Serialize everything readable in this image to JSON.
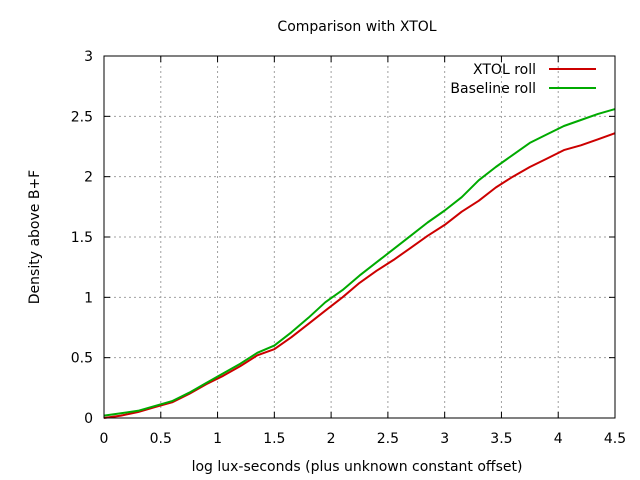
{
  "chart_data": {
    "type": "line",
    "title": "Comparison with XTOL",
    "xlabel": "log lux-seconds (plus unknown constant offset)",
    "ylabel": "Density above B+F",
    "xlim": [
      0,
      4.5
    ],
    "ylim": [
      0,
      3
    ],
    "x_ticks": [
      "0",
      "0.5",
      "1",
      "1.5",
      "2",
      "2.5",
      "3",
      "3.5",
      "4",
      "4.5"
    ],
    "y_ticks": [
      "0",
      "0.5",
      "1",
      "1.5",
      "2",
      "2.5",
      "3"
    ],
    "grid": true,
    "legend_position": "top-right",
    "series": [
      {
        "name": "XTOL roll",
        "color": "#cc0000",
        "points": [
          [
            0,
            0.0
          ],
          [
            0.15,
            0.02
          ],
          [
            0.3,
            0.05
          ],
          [
            0.45,
            0.09
          ],
          [
            0.6,
            0.13
          ],
          [
            0.75,
            0.2
          ],
          [
            0.9,
            0.28
          ],
          [
            1.05,
            0.35
          ],
          [
            1.2,
            0.43
          ],
          [
            1.35,
            0.52
          ],
          [
            1.5,
            0.57
          ],
          [
            1.65,
            0.67
          ],
          [
            1.8,
            0.78
          ],
          [
            1.95,
            0.89
          ],
          [
            2.1,
            1.0
          ],
          [
            2.25,
            1.12
          ],
          [
            2.4,
            1.22
          ],
          [
            2.55,
            1.31
          ],
          [
            2.7,
            1.41
          ],
          [
            2.85,
            1.51
          ],
          [
            3.0,
            1.6
          ],
          [
            3.15,
            1.71
          ],
          [
            3.3,
            1.8
          ],
          [
            3.45,
            1.91
          ],
          [
            3.6,
            2.0
          ],
          [
            3.75,
            2.08
          ],
          [
            3.9,
            2.15
          ],
          [
            4.05,
            2.22
          ],
          [
            4.2,
            2.26
          ],
          [
            4.35,
            2.31
          ],
          [
            4.5,
            2.36
          ]
        ]
      },
      {
        "name": "Baseline roll",
        "color": "#00aa00",
        "points": [
          [
            0,
            0.02
          ],
          [
            0.15,
            0.04
          ],
          [
            0.3,
            0.06
          ],
          [
            0.45,
            0.1
          ],
          [
            0.6,
            0.14
          ],
          [
            0.75,
            0.21
          ],
          [
            0.9,
            0.29
          ],
          [
            1.05,
            0.37
          ],
          [
            1.2,
            0.45
          ],
          [
            1.35,
            0.54
          ],
          [
            1.5,
            0.6
          ],
          [
            1.65,
            0.71
          ],
          [
            1.8,
            0.83
          ],
          [
            1.95,
            0.96
          ],
          [
            2.1,
            1.06
          ],
          [
            2.25,
            1.18
          ],
          [
            2.4,
            1.29
          ],
          [
            2.55,
            1.4
          ],
          [
            2.7,
            1.51
          ],
          [
            2.85,
            1.62
          ],
          [
            3.0,
            1.72
          ],
          [
            3.15,
            1.83
          ],
          [
            3.3,
            1.97
          ],
          [
            3.45,
            2.08
          ],
          [
            3.6,
            2.18
          ],
          [
            3.75,
            2.28
          ],
          [
            3.9,
            2.35
          ],
          [
            4.05,
            2.42
          ],
          [
            4.2,
            2.47
          ],
          [
            4.35,
            2.52
          ],
          [
            4.5,
            2.56
          ]
        ]
      }
    ]
  }
}
